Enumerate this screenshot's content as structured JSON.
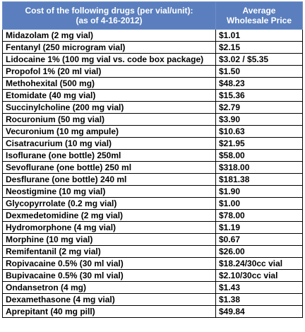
{
  "table": {
    "header": {
      "drug_line1": "Cost of the following drugs (per vial/unit):",
      "drug_line2": "(as of 4-16-2012)",
      "price_line1": "Average",
      "price_line2": "Wholesale Price"
    },
    "header_color": "#5b7fbe",
    "rows": [
      {
        "drug": "Midazolam (2 mg vial)",
        "price": "$1.01"
      },
      {
        "drug": "Fentanyl (250 microgram vial)",
        "price": "$2.15"
      },
      {
        "drug": "Lidocaine 1% (100 mg vial vs. code box package)",
        "price": "$3.02 / $5.35"
      },
      {
        "drug": "Propofol 1% (20 ml vial)",
        "price": "$1.50"
      },
      {
        "drug": "Methohexital (500 mg)",
        "price": "$48.23"
      },
      {
        "drug": "Etomidate (40 mg vial)",
        "price": "$15.36"
      },
      {
        "drug": "Succinylcholine (200 mg vial)",
        "price": "$2.79"
      },
      {
        "drug": "Rocuronium (50 mg vial)",
        "price": "$3.90"
      },
      {
        "drug": "Vecuronium (10 mg ampule)",
        "price": "$10.63"
      },
      {
        "drug": "Cisatracurium (10 mg vial)",
        "price": "$21.95"
      },
      {
        "drug": "Isoflurane (one bottle) 250ml",
        "price": "$58.00"
      },
      {
        "drug": "Sevoflurane (one bottle) 250 ml",
        "price": "$318.00"
      },
      {
        "drug": "Desflurane (one bottle) 240 ml",
        "price": "$181.38"
      },
      {
        "drug": "Neostigmine (10 mg vial)",
        "price": "$1.90"
      },
      {
        "drug": "Glycopyrrolate (0.2 mg vial)",
        "price": "$1.00"
      },
      {
        "drug": "Dexmedetomidine (2 mg vial)",
        "price": "$78.00"
      },
      {
        "drug": "Hydromorphone (4 mg vial)",
        "price": "$1.19"
      },
      {
        "drug": "Morphine (10 mg vial)",
        "price": "$0.67"
      },
      {
        "drug": "Remifentanil (2 mg vial)",
        "price": "$26.00"
      },
      {
        "drug": "Ropivacaine 0.5% (30 ml vial)",
        "price": "$18.24/30cc vial"
      },
      {
        "drug": "Bupivacaine 0.5% (30 ml vial)",
        "price": "$2.10/30cc vial"
      },
      {
        "drug": "Ondansetron (4 mg)",
        "price": "$1.43"
      },
      {
        "drug": "Dexamethasone (4 mg vial)",
        "price": "$1.38"
      },
      {
        "drug": "Aprepitant (40 mg pill)",
        "price": "$49.84"
      }
    ]
  }
}
